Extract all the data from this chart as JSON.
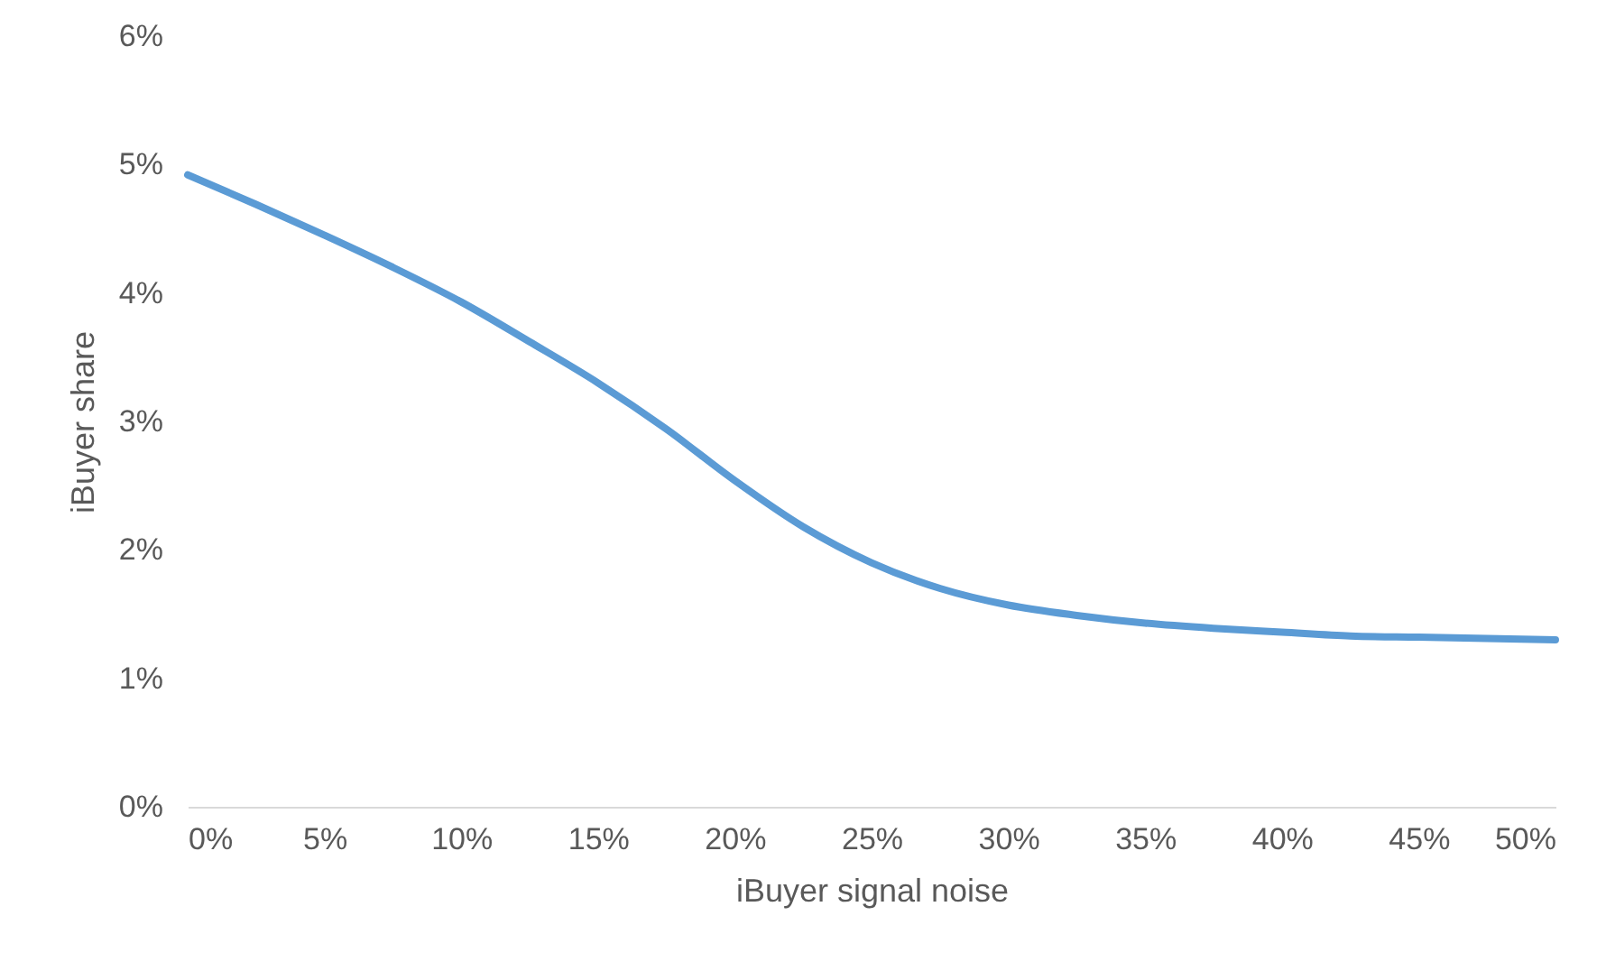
{
  "chart_data": {
    "type": "line",
    "xlabel": "iBuyer signal noise",
    "ylabel": "iBuyer share",
    "x": [
      0,
      2.5,
      5,
      7.5,
      10,
      12.5,
      15,
      17.5,
      20,
      22.5,
      25,
      27.5,
      30,
      32.5,
      35,
      37.5,
      40,
      42.5,
      45,
      47.5,
      50
    ],
    "series": [
      {
        "color": "#5b9bd5",
        "values": [
          4.92,
          4.69,
          4.45,
          4.2,
          3.93,
          3.62,
          3.3,
          2.94,
          2.54,
          2.18,
          1.9,
          1.7,
          1.57,
          1.49,
          1.43,
          1.39,
          1.36,
          1.33,
          1.32,
          1.31,
          1.3
        ]
      }
    ],
    "xlim": [
      0,
      50
    ],
    "xticks": [
      {
        "value": 0,
        "label": "0%"
      },
      {
        "value": 5,
        "label": "5%"
      },
      {
        "value": 10,
        "label": "10%"
      },
      {
        "value": 15,
        "label": "15%"
      },
      {
        "value": 20,
        "label": "20%"
      },
      {
        "value": 25,
        "label": "25%"
      },
      {
        "value": 30,
        "label": "30%"
      },
      {
        "value": 35,
        "label": "35%"
      },
      {
        "value": 40,
        "label": "40%"
      },
      {
        "value": 45,
        "label": "45%"
      },
      {
        "value": 50,
        "label": "50%"
      }
    ],
    "ylim": [
      0,
      6
    ],
    "yticks": [
      {
        "value": 0,
        "label": "0%"
      },
      {
        "value": 1,
        "label": "1%"
      },
      {
        "value": 2,
        "label": "2%"
      },
      {
        "value": 3,
        "label": "3%"
      },
      {
        "value": 4,
        "label": "4%"
      },
      {
        "value": 5,
        "label": "5%"
      },
      {
        "value": 6,
        "label": "6%"
      }
    ],
    "grid": false,
    "marker": "none",
    "line_style": "solid"
  }
}
